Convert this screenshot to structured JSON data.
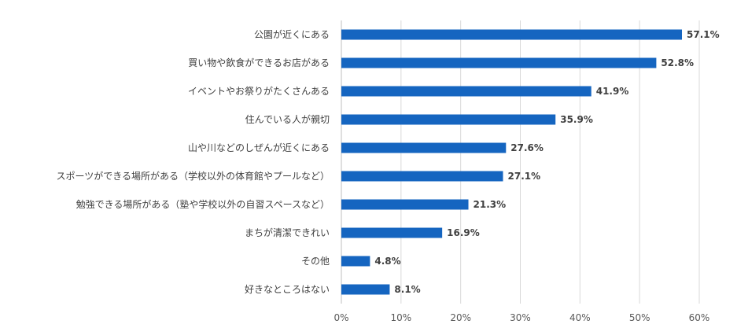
{
  "chart_data": {
    "type": "bar",
    "orientation": "horizontal",
    "categories": [
      "公園が近くにある",
      "買い物や飲食ができるお店がある",
      "イベントやお祭りがたくさんある",
      "住んでいる人が親切",
      "山や川などのしぜんが近くにある",
      "スポーツができる場所がある（学校以外の体育館やプールなど）",
      "勉強できる場所がある（塾や学校以外の自習スペースなど）",
      "まちが清潔できれい",
      "その他",
      "好きなところはない"
    ],
    "values": [
      57.1,
      52.8,
      41.9,
      35.9,
      27.6,
      27.1,
      21.3,
      16.9,
      4.8,
      8.1
    ],
    "value_labels": [
      "57.1%",
      "52.8%",
      "41.9%",
      "35.9%",
      "27.6%",
      "27.1%",
      "21.3%",
      "16.9%",
      "4.8%",
      "8.1%"
    ],
    "xlim": [
      0,
      60
    ],
    "x_ticks": [
      "0%",
      "10%",
      "20%",
      "30%",
      "40%",
      "50%",
      "60%"
    ],
    "grid": true,
    "bar_color": "#1565C0"
  }
}
